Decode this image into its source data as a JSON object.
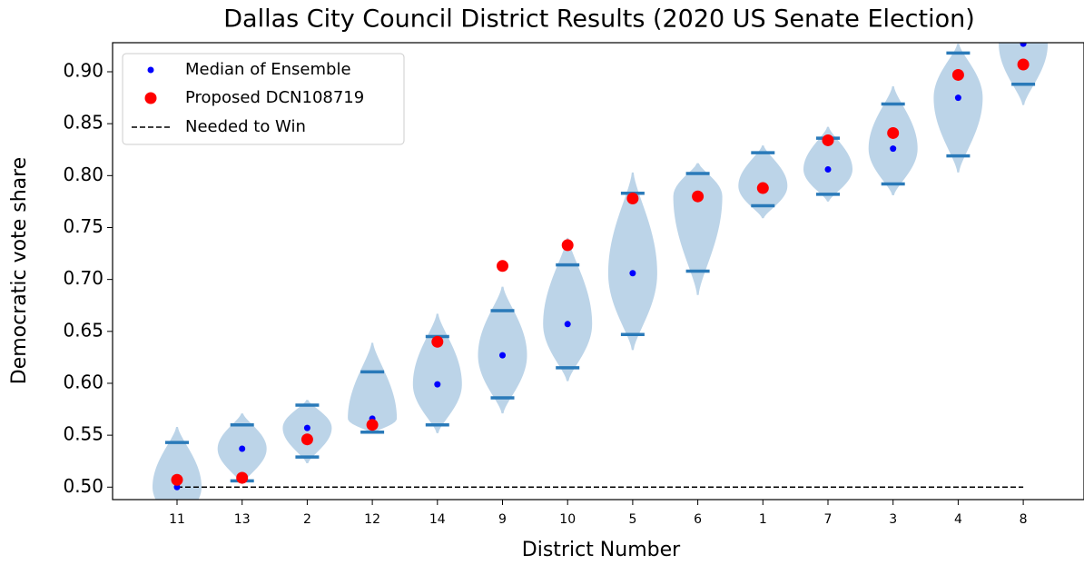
{
  "chart_data": {
    "type": "violin",
    "title": "Dallas City Council District Results  (2020 US Senate Election)",
    "x_label": "District Number",
    "y_label": "Democratic vote share",
    "categories": [
      "11",
      "13",
      "2",
      "12",
      "14",
      "9",
      "10",
      "5",
      "6",
      "1",
      "7",
      "3",
      "4",
      "8"
    ],
    "series": [
      {
        "name": "Median of Ensemble",
        "color": "#0000ff",
        "values": [
          0.5,
          0.537,
          0.557,
          0.566,
          0.599,
          0.627,
          0.657,
          0.706,
          0.78,
          0.79,
          0.806,
          0.826,
          0.875,
          0.927
        ]
      },
      {
        "name": "Proposed DCN108719",
        "color": "#ff0000",
        "values": [
          0.507,
          0.509,
          0.546,
          0.56,
          0.64,
          0.713,
          0.733,
          0.778,
          0.78,
          0.788,
          0.834,
          0.841,
          0.897,
          0.907
        ]
      }
    ],
    "threshold": {
      "name": "Needed to Win",
      "value": 0.5,
      "color": "#000000"
    },
    "violins": {
      "color": "#bcd4e8",
      "bar_color": "#2a7ab9",
      "lower": [
        0.47,
        0.506,
        0.529,
        0.553,
        0.56,
        0.586,
        0.615,
        0.647,
        0.708,
        0.771,
        0.782,
        0.792,
        0.819,
        0.888
      ],
      "upper": [
        0.543,
        0.56,
        0.579,
        0.611,
        0.645,
        0.67,
        0.714,
        0.783,
        0.802,
        0.822,
        0.836,
        0.869,
        0.918,
        0.95
      ],
      "min": [
        0.46,
        0.503,
        0.523,
        0.552,
        0.552,
        0.571,
        0.602,
        0.632,
        0.685,
        0.759,
        0.775,
        0.781,
        0.803,
        0.868
      ],
      "max": [
        0.558,
        0.571,
        0.584,
        0.639,
        0.667,
        0.693,
        0.74,
        0.803,
        0.812,
        0.829,
        0.847,
        0.886,
        0.927,
        0.97
      ]
    },
    "ylim": [
      0.488,
      0.928
    ],
    "yticks": [
      {
        "value": 0.5,
        "label": "0.50"
      },
      {
        "value": 0.55,
        "label": "0.55"
      },
      {
        "value": 0.6,
        "label": "0.60"
      },
      {
        "value": 0.65,
        "label": "0.65"
      },
      {
        "value": 0.7,
        "label": "0.70"
      },
      {
        "value": 0.75,
        "label": "0.75"
      },
      {
        "value": 0.8,
        "label": "0.80"
      },
      {
        "value": 0.85,
        "label": "0.85"
      },
      {
        "value": 0.9,
        "label": "0.90"
      }
    ],
    "legend": "upper left"
  }
}
